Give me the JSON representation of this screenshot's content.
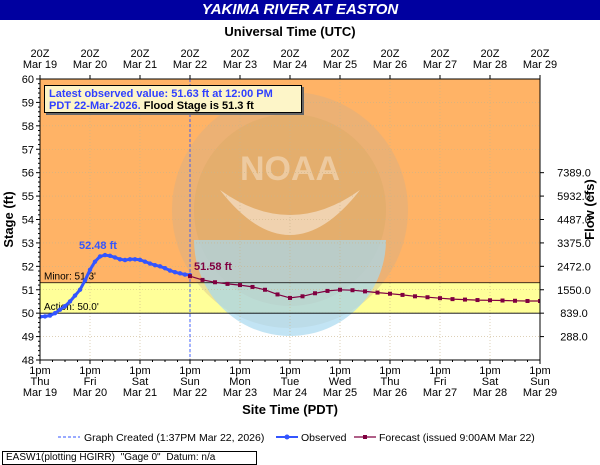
{
  "header": {
    "title": "YAKIMA RIVER AT EASTON"
  },
  "callout": {
    "line1": "Latest observed value: 51.63 ft at 12:00 PM",
    "line2a": "PDT 22-Mar-2026.",
    "line2b": " Flood Stage is 51.3 ft"
  },
  "footer": {
    "station": "EASW1(plotting HGIRR)",
    "gage": "\"Gage 0\"",
    "datum": "Datum: n/a"
  },
  "colors": {
    "major": "#ffb366",
    "minor": "#ffd27f",
    "action": "#ffff99",
    "observed": "#3355ff",
    "forecast": "#800040",
    "header": "#0000a0"
  },
  "chart_data": {
    "type": "line",
    "title": "YAKIMA RIVER AT EASTON",
    "top_axis_label": "Universal Time (UTC)",
    "xlabel": "Site Time (PDT)",
    "ylabel": "Stage (ft)",
    "y2label": "Flow (cfs)",
    "ylim": [
      48,
      60
    ],
    "y_ticks": [
      48,
      49,
      50,
      51,
      52,
      53,
      54,
      55,
      56,
      57,
      58,
      59,
      60
    ],
    "y2_ticks": [
      {
        "stage": 49,
        "label": "288.0"
      },
      {
        "stage": 50,
        "label": "839.0"
      },
      {
        "stage": 51,
        "label": "1550.0"
      },
      {
        "stage": 52,
        "label": "2472.0"
      },
      {
        "stage": 53,
        "label": "3375.0"
      },
      {
        "stage": 54,
        "label": "4487.0"
      },
      {
        "stage": 55,
        "label": "5932.0"
      },
      {
        "stage": 56,
        "label": "7389.0"
      }
    ],
    "bottom_ticks": [
      [
        "1pm",
        "Thu",
        "Mar 19"
      ],
      [
        "1pm",
        "Fri",
        "Mar 20"
      ],
      [
        "1pm",
        "Sat",
        "Mar 21"
      ],
      [
        "1pm",
        "Sun",
        "Mar 22"
      ],
      [
        "1pm",
        "Mon",
        "Mar 23"
      ],
      [
        "1pm",
        "Tue",
        "Mar 24"
      ],
      [
        "1pm",
        "Wed",
        "Mar 25"
      ],
      [
        "1pm",
        "Thu",
        "Mar 26"
      ],
      [
        "1pm",
        "Fri",
        "Mar 27"
      ],
      [
        "1pm",
        "Sat",
        "Mar 28"
      ],
      [
        "1pm",
        "Sun",
        "Mar 29"
      ]
    ],
    "top_ticks": [
      [
        "20Z",
        "Mar 19"
      ],
      [
        "20Z",
        "Mar 20"
      ],
      [
        "20Z",
        "Mar 21"
      ],
      [
        "20Z",
        "Mar 22"
      ],
      [
        "20Z",
        "Mar 23"
      ],
      [
        "20Z",
        "Mar 24"
      ],
      [
        "20Z",
        "Mar 25"
      ],
      [
        "20Z",
        "Mar 26"
      ],
      [
        "20Z",
        "Mar 27"
      ],
      [
        "20Z",
        "Mar 28"
      ],
      [
        "20Z",
        "Mar 29"
      ]
    ],
    "thresholds": [
      {
        "label": "Minor: 51.3'",
        "stage": 51.3
      },
      {
        "label": "Action: 50.0'",
        "stage": 50.0
      }
    ],
    "bands": [
      {
        "from": 51.3,
        "to": 60,
        "color": "#ffb366"
      },
      {
        "from": 50.0,
        "to": 51.3,
        "color": "#ffff99"
      }
    ],
    "observed": {
      "name": "Observed",
      "peak_label": "52.48 ft",
      "x": [
        0,
        0.1,
        0.2,
        0.3,
        0.4,
        0.5,
        0.6,
        0.7,
        0.8,
        0.9,
        1.0,
        1.1,
        1.2,
        1.3,
        1.4,
        1.5,
        1.6,
        1.7,
        1.8,
        1.9,
        2.0,
        2.1,
        2.2,
        2.3,
        2.4,
        2.5,
        2.6,
        2.7,
        2.8,
        2.9,
        3.0
      ],
      "values": [
        49.85,
        49.86,
        49.9,
        50.0,
        50.15,
        50.3,
        50.5,
        50.75,
        51.0,
        51.4,
        51.85,
        52.2,
        52.42,
        52.48,
        52.45,
        52.38,
        52.3,
        52.27,
        52.3,
        52.3,
        52.28,
        52.2,
        52.12,
        52.05,
        52.0,
        51.92,
        51.82,
        51.75,
        51.7,
        51.65,
        51.63
      ]
    },
    "forecast": {
      "name": "Forecast (issued 9:00AM Mar 22)",
      "start_label": "51.58 ft",
      "x": [
        3.0,
        3.25,
        3.5,
        3.75,
        4.0,
        4.25,
        4.5,
        4.75,
        5.0,
        5.25,
        5.5,
        5.75,
        6.0,
        6.25,
        6.5,
        6.75,
        7.0,
        7.25,
        7.5,
        7.75,
        8.0,
        8.25,
        8.5,
        8.75,
        9.0,
        9.25,
        9.5,
        9.75,
        10.0
      ],
      "values": [
        51.58,
        51.42,
        51.32,
        51.25,
        51.2,
        51.12,
        51.0,
        50.8,
        50.65,
        50.72,
        50.85,
        50.95,
        51.0,
        50.98,
        50.93,
        50.88,
        50.83,
        50.78,
        50.72,
        50.68,
        50.64,
        50.6,
        50.58,
        50.56,
        50.55,
        50.54,
        50.53,
        50.52,
        50.52
      ]
    },
    "graph_created": {
      "x": 3.0,
      "label": "Graph Created (1:37PM Mar 22, 2026)"
    },
    "x_domain": [
      0,
      10
    ],
    "legend": {
      "position": "bottom",
      "items": [
        "Graph Created (1:37PM Mar 22, 2026)",
        "Observed",
        "Forecast (issued 9:00AM Mar 22)"
      ]
    }
  }
}
